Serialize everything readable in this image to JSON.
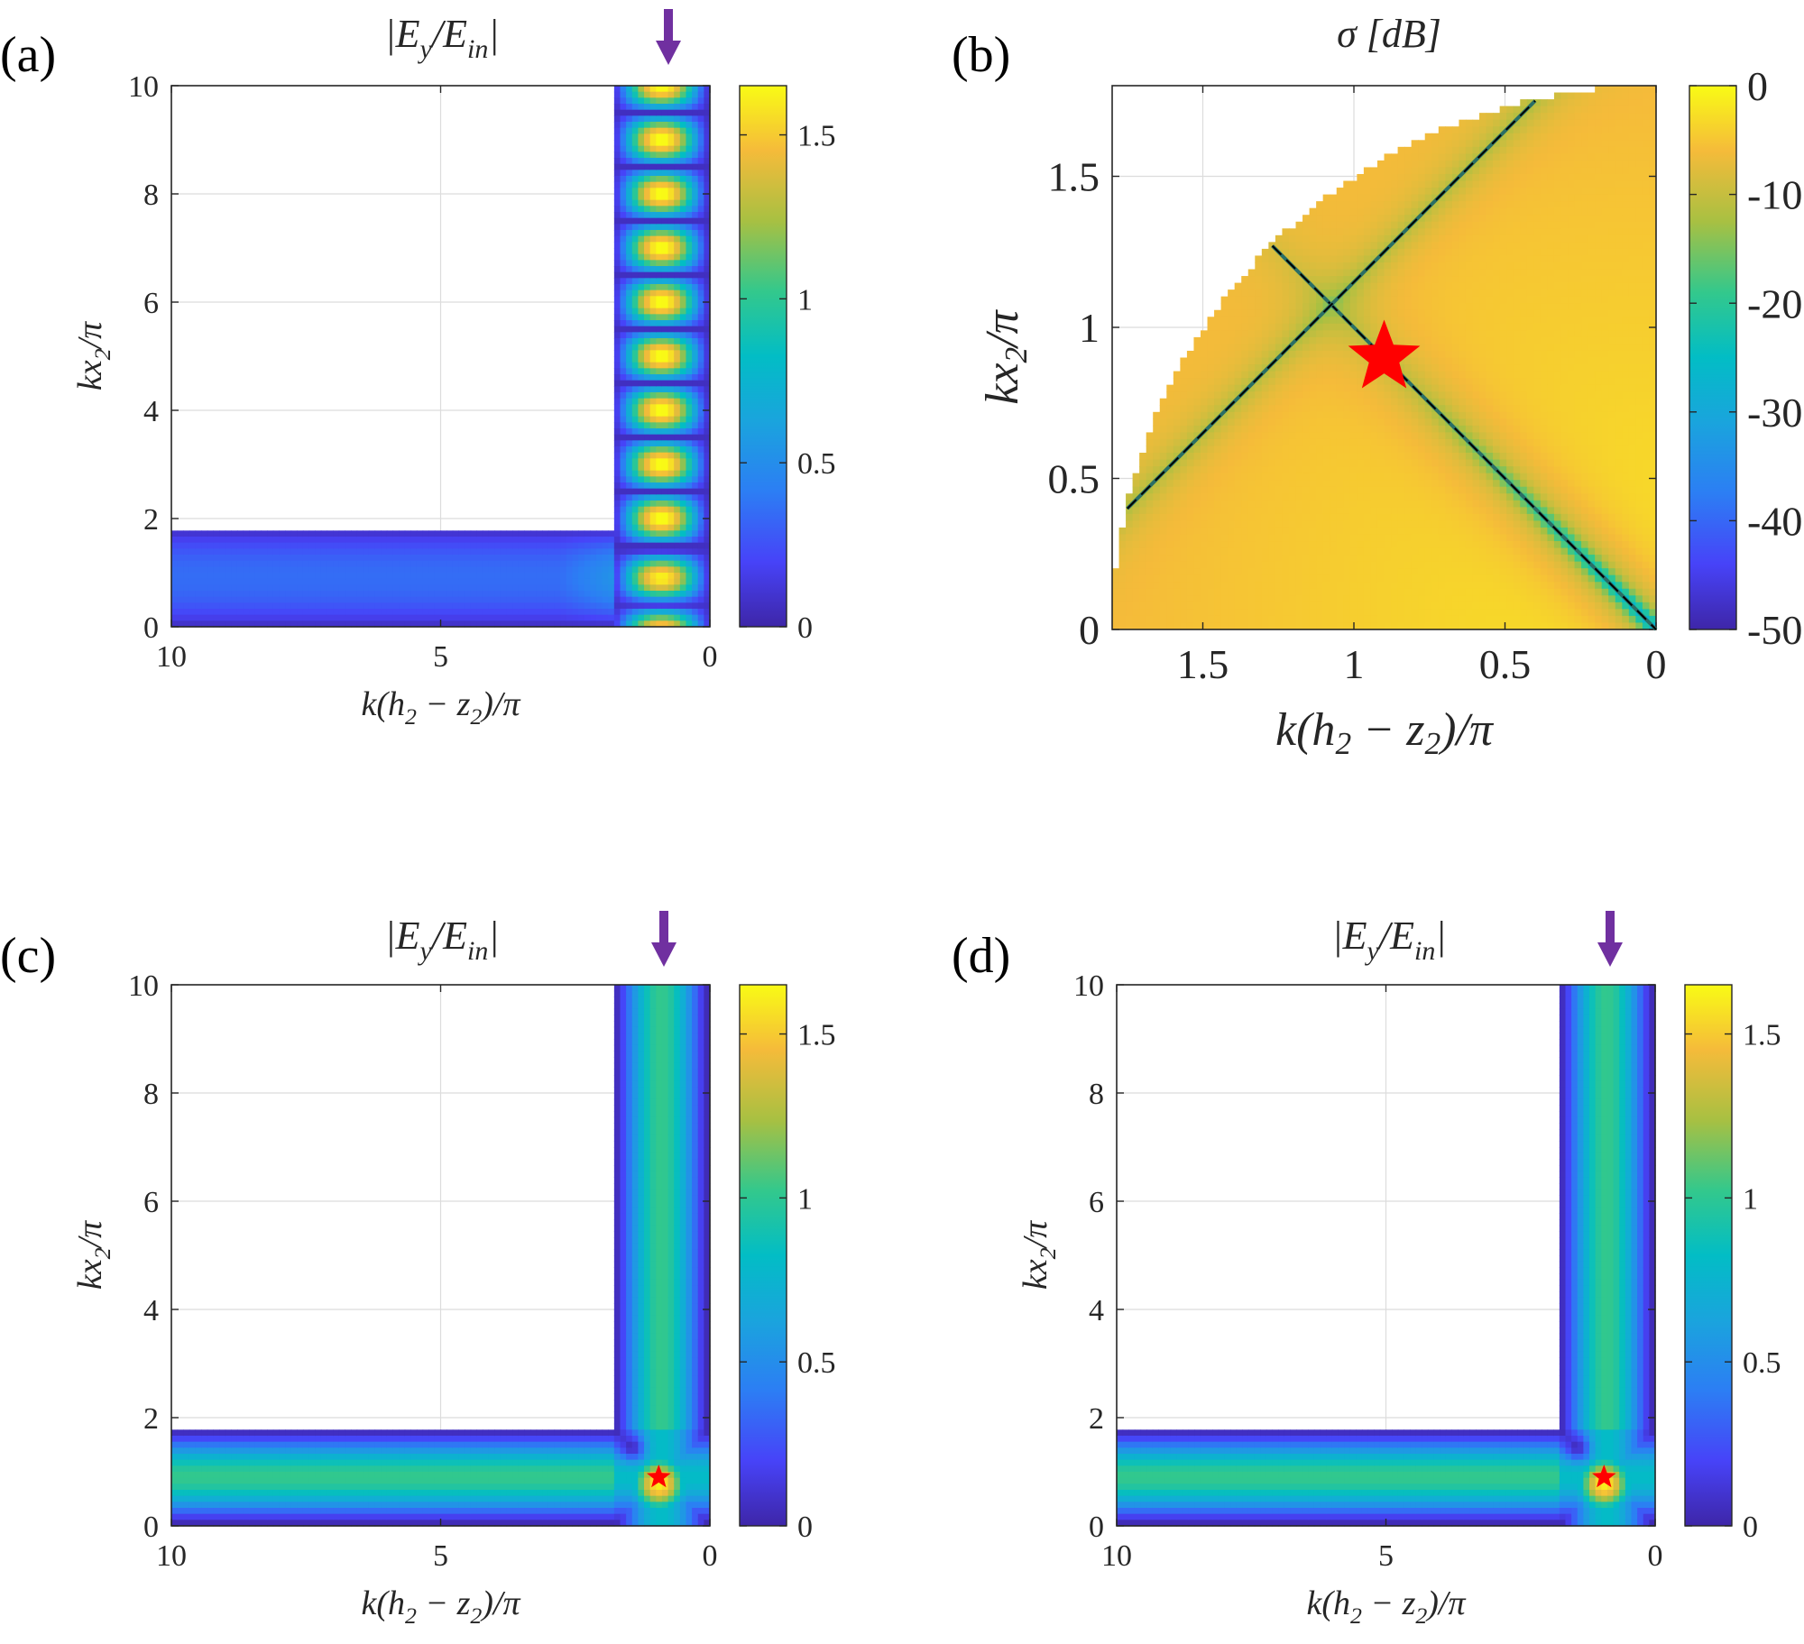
{
  "chart_data": [
    {
      "type": "heatmap",
      "panel": "(a)",
      "title": "|E_y/E_in|",
      "xlabel": "k(h_2 − z_2)/π",
      "ylabel": "kx_2/π",
      "xlim": [
        10,
        0
      ],
      "ylim": [
        0,
        10
      ],
      "xticks": [
        10,
        5,
        0
      ],
      "yticks": [
        0,
        2,
        4,
        6,
        8,
        10
      ],
      "colorbar": {
        "range": [
          0,
          1.65
        ],
        "ticks": [
          0,
          0.5,
          1,
          1.5
        ]
      },
      "field_mode": "standing",
      "waveguide": {
        "vertical_width": 1.8,
        "horizontal_width": 1.8
      },
      "arrow_x": 0.95,
      "star": null
    },
    {
      "type": "heatmap",
      "panel": "(b)",
      "title": "σ [dB]",
      "xlabel": "k(h_2 − z_2)/π",
      "ylabel": "kx_2/π",
      "xlim": [
        1.8,
        0
      ],
      "ylim": [
        0,
        1.8
      ],
      "xticks": [
        1.5,
        1,
        0.5,
        0
      ],
      "yticks": [
        0,
        0.5,
        1,
        1.5
      ],
      "colorbar": {
        "range": [
          -50,
          0
        ],
        "ticks": [
          0,
          -10,
          -20,
          -30,
          -40,
          -50
        ]
      },
      "domain_radius": 1.8,
      "dashed_lines": [
        {
          "from": [
            1.27,
            1.27
          ],
          "to": [
            0,
            0
          ]
        },
        {
          "from": [
            1.75,
            0.4
          ],
          "to": [
            0.4,
            1.75
          ]
        }
      ],
      "star": [
        0.9,
        0.9
      ]
    },
    {
      "type": "heatmap",
      "panel": "(c)",
      "title": "|E_y/E_in|",
      "xlabel": "k(h_2 − z_2)/π",
      "ylabel": "kx_2/π",
      "xlim": [
        10,
        0
      ],
      "ylim": [
        0,
        10
      ],
      "xticks": [
        10,
        5,
        0
      ],
      "yticks": [
        0,
        2,
        4,
        6,
        8,
        10
      ],
      "colorbar": {
        "range": [
          0,
          1.65
        ],
        "ticks": [
          0,
          0.5,
          1,
          1.5
        ]
      },
      "field_mode": "guided",
      "waveguide": {
        "vertical_width": 1.8,
        "horizontal_width": 1.8
      },
      "arrow_x": 0.95,
      "star": [
        0.95,
        0.9
      ]
    },
    {
      "type": "heatmap",
      "panel": "(d)",
      "title": "|E_y/E_in|",
      "xlabel": "k(h_2 − z_2)/π",
      "ylabel": "kx_2/π",
      "xlim": [
        10,
        0
      ],
      "ylim": [
        0,
        10
      ],
      "xticks": [
        10,
        5,
        0
      ],
      "yticks": [
        0,
        2,
        4,
        6,
        8,
        10
      ],
      "colorbar": {
        "range": [
          0,
          1.65
        ],
        "ticks": [
          0,
          0.5,
          1,
          1.5
        ]
      },
      "field_mode": "guided",
      "waveguide": {
        "vertical_width": 1.8,
        "horizontal_width": 1.8
      },
      "arrow_x": 0.95,
      "star": [
        0.95,
        0.9
      ]
    }
  ],
  "colors": {
    "arrow": "#7030a0",
    "star": "#ff0000",
    "grid": "#dcdcdc"
  },
  "panel_labels": [
    "(a)",
    "(b)",
    "(c)",
    "(d)"
  ],
  "field_title": {
    "pre": "|E",
    "sub1": "y",
    "mid": "/E",
    "sub2": "in",
    "post": "|"
  },
  "sigma_title": "σ [dB]",
  "label_parts": {
    "x": {
      "pre": "k(h",
      "sub1": "2",
      "mid": " − z",
      "sub2": "2",
      "post": ")/π"
    },
    "y": {
      "pre": "kx",
      "sub": "2",
      "post": "/π"
    }
  }
}
